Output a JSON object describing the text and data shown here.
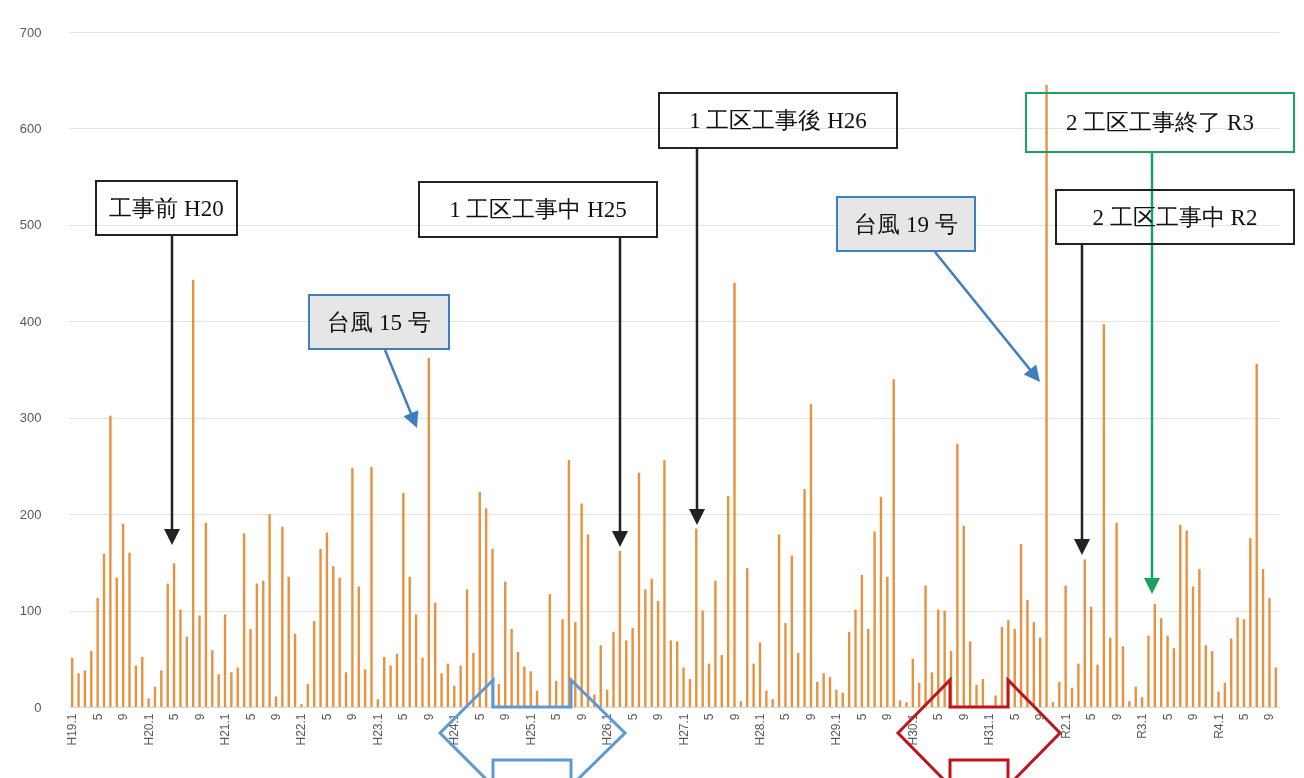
{
  "chart_data": {
    "type": "bar",
    "categories": [
      "H19.1",
      null,
      null,
      null,
      "5",
      null,
      null,
      null,
      "9",
      null,
      null,
      null,
      "H20.1",
      null,
      null,
      null,
      "5",
      null,
      null,
      null,
      "9",
      null,
      null,
      null,
      "H21.1",
      null,
      null,
      null,
      "5",
      null,
      null,
      null,
      "9",
      null,
      null,
      null,
      "H22.1",
      null,
      null,
      null,
      "5",
      null,
      null,
      null,
      "9",
      null,
      null,
      null,
      "H23.1",
      null,
      null,
      null,
      "5",
      null,
      null,
      null,
      "9",
      null,
      null,
      null,
      "H24.1",
      null,
      null,
      null,
      "5",
      null,
      null,
      null,
      "9",
      null,
      null,
      null,
      "H25.1",
      null,
      null,
      null,
      "5",
      null,
      null,
      null,
      "9",
      null,
      null,
      null,
      "H26.1",
      null,
      null,
      null,
      "5",
      null,
      null,
      null,
      "9",
      null,
      null,
      null,
      "H27.1",
      null,
      null,
      null,
      "5",
      null,
      null,
      null,
      "9",
      null,
      null,
      null,
      "H28.1",
      null,
      null,
      null,
      "5",
      null,
      null,
      null,
      "9",
      null,
      null,
      null,
      "H29.1",
      null,
      null,
      null,
      "5",
      null,
      null,
      null,
      "9",
      null,
      null,
      null,
      "H30.1",
      null,
      null,
      null,
      "5",
      null,
      null,
      null,
      "9",
      null,
      null,
      null,
      "H31.1",
      null,
      null,
      null,
      "5",
      null,
      null,
      null,
      "9",
      null,
      null,
      null,
      "R2.1",
      null,
      null,
      null,
      "5",
      null,
      null,
      null,
      "9",
      null,
      null,
      null,
      "R3.1",
      null,
      null,
      null,
      "5",
      null,
      null,
      null,
      "9",
      null,
      null,
      null,
      "R4.1",
      null,
      null,
      null,
      "5",
      null,
      null,
      null,
      "9",
      null
    ],
    "values": [
      51,
      35,
      38,
      58,
      113,
      159,
      302,
      134,
      190,
      160,
      43,
      52,
      9,
      21,
      38,
      128,
      149,
      101,
      73,
      443,
      95,
      191,
      59,
      34,
      96,
      36,
      41,
      180,
      81,
      128,
      131,
      200,
      11,
      187,
      135,
      76,
      3,
      24,
      89,
      164,
      181,
      146,
      134,
      36,
      248,
      125,
      39,
      249,
      8,
      52,
      43,
      55,
      222,
      135,
      96,
      51,
      362,
      108,
      35,
      45,
      22,
      43,
      122,
      56,
      223,
      206,
      164,
      24,
      130,
      81,
      57,
      42,
      37,
      17,
      0,
      117,
      27,
      91,
      256,
      88,
      211,
      179,
      13,
      64,
      18,
      78,
      162,
      69,
      82,
      243,
      122,
      133,
      110,
      256,
      69,
      68,
      41,
      29,
      185,
      100,
      45,
      131,
      54,
      219,
      440,
      6,
      144,
      45,
      67,
      17,
      8,
      179,
      87,
      157,
      56,
      226,
      314,
      26,
      35,
      31,
      18,
      15,
      78,
      101,
      137,
      81,
      182,
      218,
      135,
      340,
      7,
      5,
      50,
      25,
      126,
      36,
      101,
      100,
      58,
      273,
      188,
      68,
      23,
      29,
      0,
      12,
      83,
      90,
      81,
      169,
      111,
      88,
      72,
      645,
      5,
      26,
      126,
      20,
      45,
      153,
      104,
      44,
      397,
      72,
      191,
      63,
      6,
      21,
      10,
      74,
      107,
      92,
      74,
      61,
      189,
      183,
      125,
      143,
      64,
      58,
      16,
      25,
      71,
      93,
      91,
      175,
      356,
      143,
      113,
      41
    ],
    "color": "#e8913f",
    "ylim": [
      0,
      700
    ],
    "yticks": [
      0,
      100,
      200,
      300,
      400,
      500,
      600,
      700
    ],
    "grid": "y",
    "annotations": [
      "工事前 H20",
      "台風 15 号",
      "1 工区工事中 H25",
      "1 工区工事後 H26",
      "台風 19 号",
      "2 工区工事終了 R3",
      "2 工区工事中 R2"
    ]
  }
}
